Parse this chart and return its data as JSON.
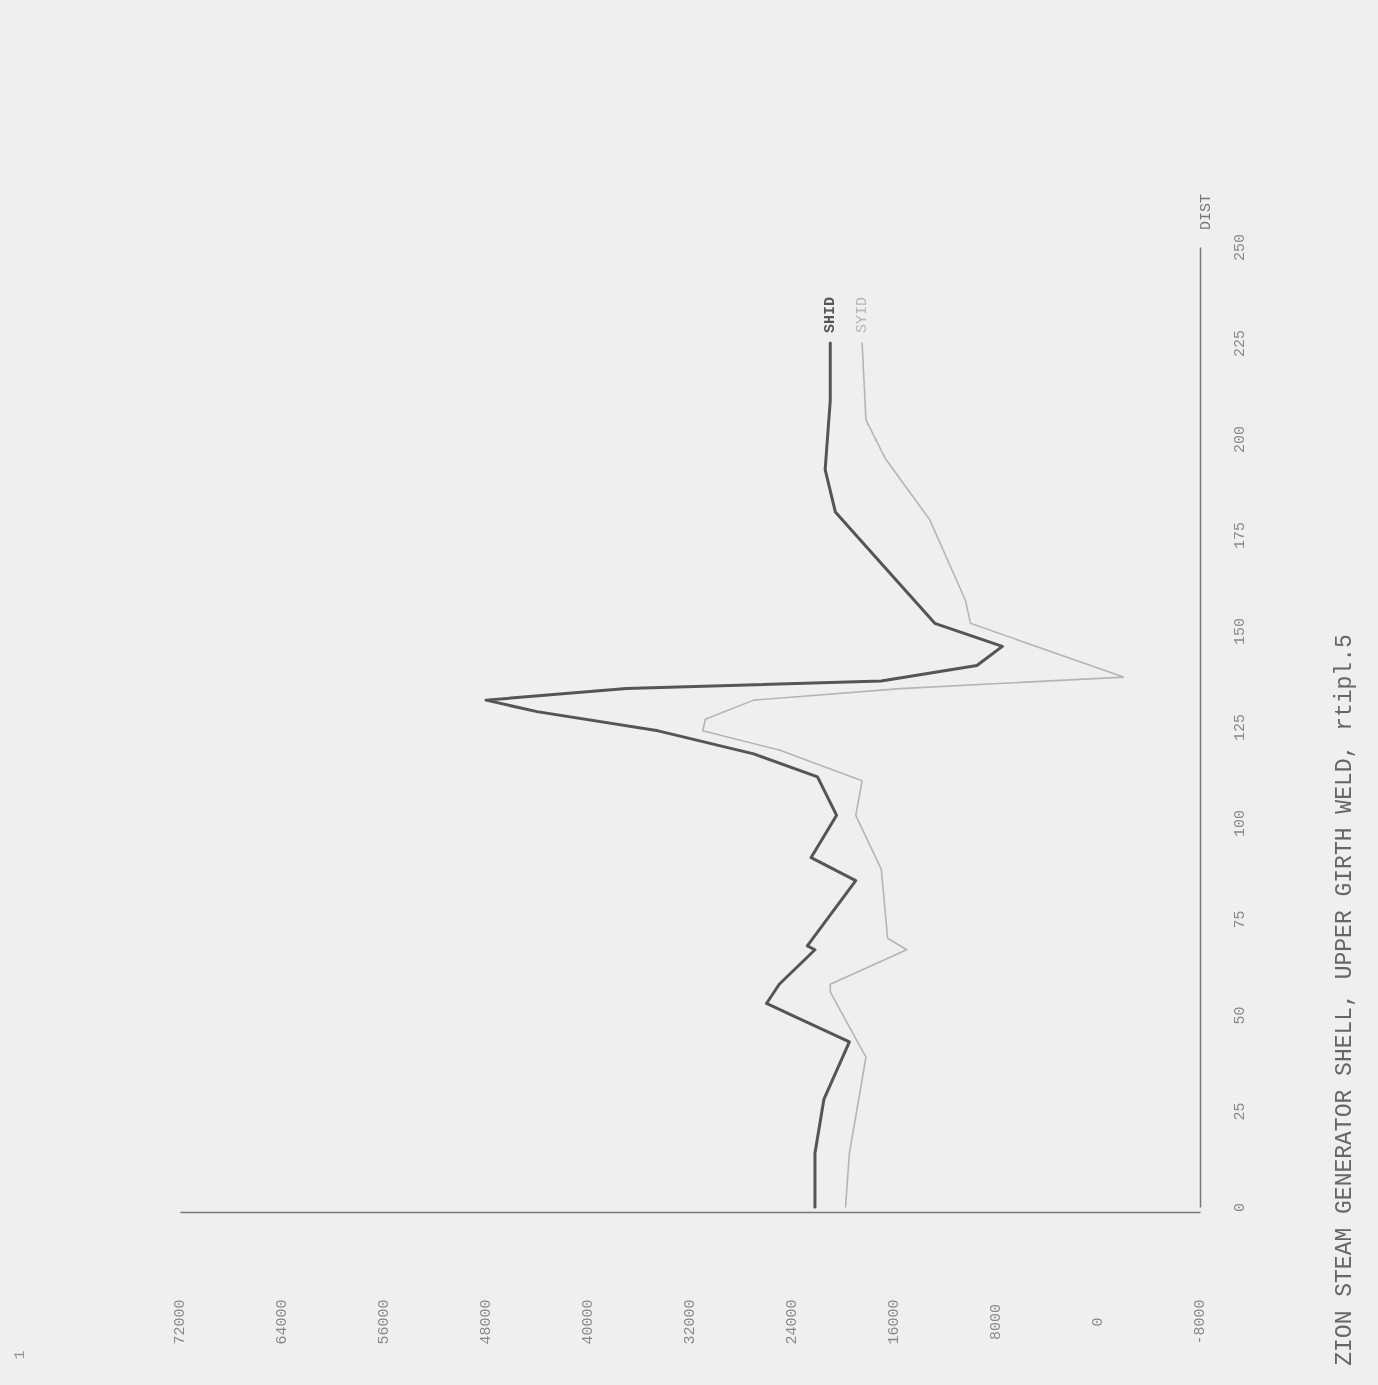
{
  "chart_data": {
    "type": "line",
    "title": "ZION STEAM GENERATOR SHELL, UPPER GIRTH WELD, rtipl.5",
    "ylabel": "DIST",
    "annotations": [
      "1"
    ],
    "xlim": [
      72000,
      -8000
    ],
    "xticks": [
      72000,
      64000,
      56000,
      48000,
      40000,
      32000,
      24000,
      16000,
      8000,
      0,
      -8000
    ],
    "ylim": [
      0,
      250
    ],
    "yticks": [
      0,
      25,
      50,
      75,
      100,
      125,
      150,
      175,
      200,
      225,
      250
    ],
    "grid": false,
    "legend": false,
    "series": [
      {
        "name": "SHID",
        "color": "#555555",
        "values": [
          0,
          14,
          28,
          43,
          53,
          58,
          67,
          68,
          85,
          91,
          102,
          112,
          118,
          124,
          129,
          132,
          135,
          137,
          141,
          146,
          152,
          168,
          181,
          192,
          210,
          225
        ],
        "x": [
          22200,
          22200,
          21500,
          19500,
          26000,
          25000,
          22200,
          22800,
          19000,
          22500,
          20500,
          22000,
          27000,
          34500,
          44000,
          48000,
          37000,
          17000,
          9500,
          7500,
          12800,
          17100,
          20600,
          21400,
          21000,
          21000
        ]
      },
      {
        "name": "SYID",
        "color": "#b5b5b5",
        "values": [
          0,
          14,
          39,
          56,
          58,
          67,
          70,
          88,
          102,
          111,
          119,
          124,
          127,
          132,
          135,
          138,
          152,
          158,
          179,
          195,
          205,
          225
        ],
        "x": [
          19800,
          19500,
          18200,
          21000,
          21000,
          15000,
          16500,
          17000,
          19000,
          18500,
          25000,
          31000,
          30800,
          27000,
          15500,
          -2000,
          10000,
          10400,
          13200,
          16700,
          18200,
          18500
        ]
      }
    ]
  }
}
